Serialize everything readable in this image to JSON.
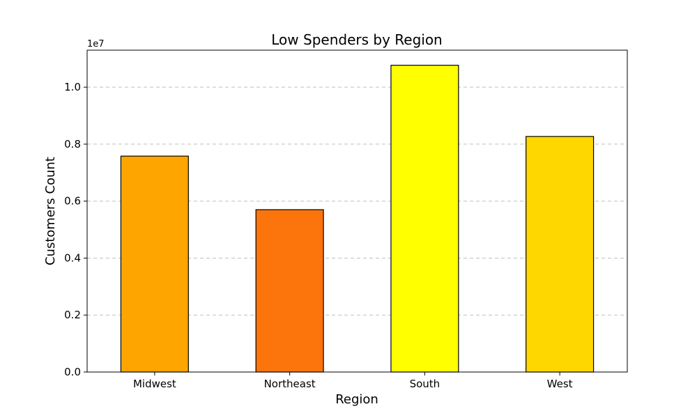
{
  "chart_data": {
    "type": "bar",
    "title": "Low Spenders by Region",
    "xlabel": "Region",
    "ylabel": "Customers Count",
    "categories": [
      "Midwest",
      "Northeast",
      "South",
      "West"
    ],
    "values": [
      7580000,
      5700000,
      10770000,
      8270000
    ],
    "colors": [
      "#FFA500",
      "#FC750C",
      "#FFFF00",
      "#FFD700"
    ],
    "ylim": [
      0,
      11300000
    ],
    "yticks": [
      0,
      2000000,
      4000000,
      6000000,
      8000000,
      10000000
    ],
    "ytick_labels": [
      "0.0",
      "0.2",
      "0.4",
      "0.6",
      "0.8",
      "1.0"
    ],
    "y_offset_label": "1e7",
    "grid": "y-dashed",
    "legend": "none"
  }
}
